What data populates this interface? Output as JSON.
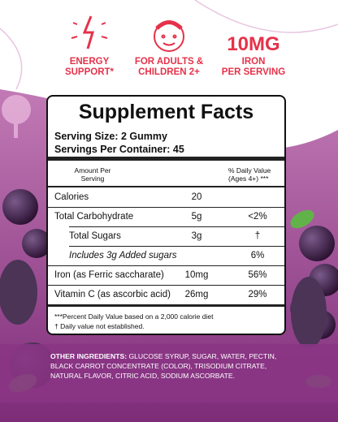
{
  "header": {
    "badges": [
      {
        "lines": [
          "ENERGY",
          "SUPPORT*"
        ]
      },
      {
        "lines": [
          "FOR ADULTS &",
          "CHILDREN 2+"
        ]
      },
      {
        "title": "10MG",
        "lines": [
          "IRON",
          "PER SERVING"
        ]
      }
    ]
  },
  "facts": {
    "title": "Supplement Facts",
    "serving_size": "Serving Size: 2 Gummy",
    "servings_per_container": "Servings Per Container: 45",
    "header_amount": "Amount Per Serving",
    "header_dv": "% Daily Value (Ages 4+) ***",
    "rows": [
      [
        "Calories",
        "20",
        ""
      ],
      [
        "Total Carbohydrate",
        "5g",
        "<2%"
      ],
      [
        "Total Sugars",
        "3g",
        "†"
      ],
      [
        "Includes 3g Added sugars",
        "",
        "6%"
      ],
      [
        "Iron (as Ferric saccharate)",
        "10mg",
        "56%"
      ],
      [
        "Vitamin C (as ascorbic acid)",
        "26mg",
        "29%"
      ]
    ],
    "footnotes": [
      "***Percent Daily Value based on a 2,000 calorie diet",
      "† Daily value not established."
    ]
  },
  "ingredients": {
    "label": "OTHER INGREDIENTS:",
    "text": "GLUCOSE SYRUP, SUGAR, WATER, PECTIN, BLACK CARROT CONCENTRATE (COLOR), TRISODIUM CITRATE, NATURAL FLAVOR, CITRIC ACID, SODIUM ASCORBATE."
  }
}
